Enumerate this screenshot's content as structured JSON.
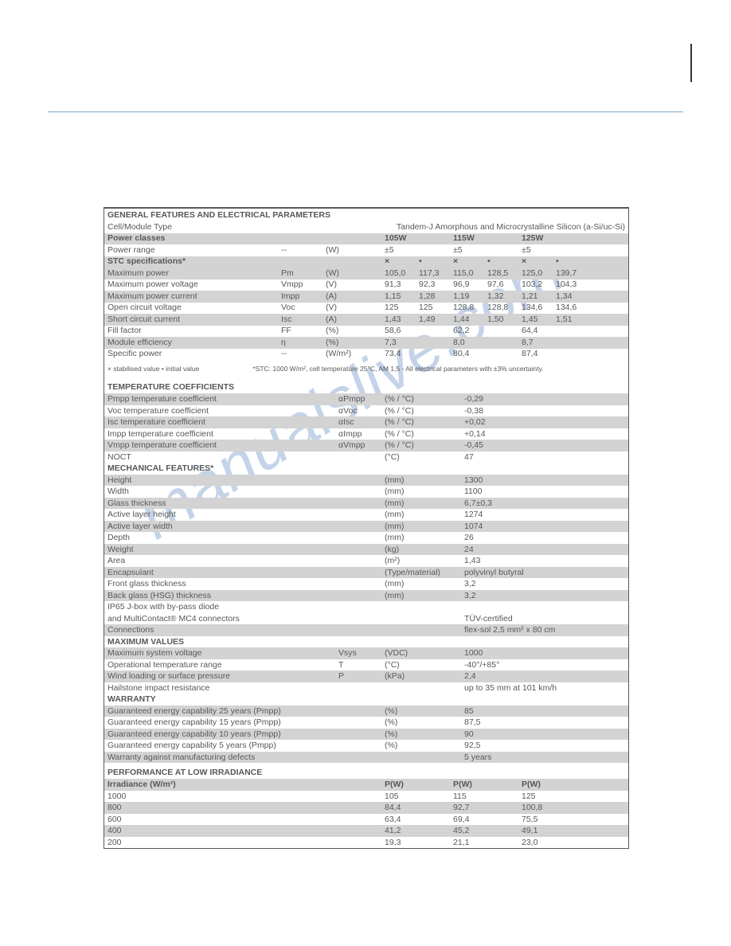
{
  "watermark": "manualslive.com",
  "sections": {
    "general": {
      "title": "GENERAL FEATURES AND ELECTRICAL PARAMETERS",
      "celltype_label": "Cell/Module Type",
      "celltype_value": "Tandem-J Amorphous and Microcrystalline Silicon (a-Si/uc-Si)",
      "powerclasses_label": "Power classes",
      "pc1": "105W",
      "pc2": "115W",
      "pc3": "125W",
      "powerrange_label": "Power range",
      "powerrange_sym": "--",
      "powerrange_unit": "(W)",
      "pr1": "±5",
      "pr2": "±5",
      "pr3": "±5",
      "stc_label": "STC specifications*",
      "sx": "×",
      "sd": "•",
      "rows": [
        {
          "shade": true,
          "label": "Maximum power",
          "sym": "Pm",
          "unit": "(W)",
          "a1": "105,0",
          "b1": "117,3",
          "a2": "115,0",
          "b2": "128,5",
          "a3": "125,0",
          "b3": "139,7"
        },
        {
          "shade": false,
          "label": "Maximum power voltage",
          "sym": "Vmpp",
          "unit": "(V)",
          "a1": "91,3",
          "b1": "92,3",
          "a2": "96,9",
          "b2": "97,6",
          "a3": "103,2",
          "b3": "104,3"
        },
        {
          "shade": true,
          "label": "Maximum power current",
          "sym": "Impp",
          "unit": "(A)",
          "a1": "1,15",
          "b1": "1,28",
          "a2": "1,19",
          "b2": "1,32",
          "a3": "1,21",
          "b3": "1,34"
        },
        {
          "shade": false,
          "label": "Open circuit voltage",
          "sym": "Voc",
          "unit": "(V)",
          "a1": "125",
          "b1": "125",
          "a2": "128,8",
          "b2": "128,8",
          "a3": "134,6",
          "b3": "134,6"
        },
        {
          "shade": true,
          "label": "Short circuit current",
          "sym": "Isc",
          "unit": "(A)",
          "a1": "1,43",
          "b1": "1,49",
          "a2": "1,44",
          "b2": "1,50",
          "a3": "1,45",
          "b3": "1,51"
        },
        {
          "shade": false,
          "label": "Fill factor",
          "sym": "FF",
          "unit": "(%)",
          "v1": "58,6",
          "v2": "62,2",
          "v3": "64,4"
        },
        {
          "shade": true,
          "label": "Module efficiency",
          "sym": "η",
          "unit": "(%)",
          "v1": "7,3",
          "v2": "8,0",
          "v3": "8,7"
        },
        {
          "shade": false,
          "label": "Specific power",
          "sym": "--",
          "unit": "(W/m²)",
          "v1": "73,4",
          "v2": "80,4",
          "v3": "87,4"
        }
      ],
      "footnote_left": "× stabilised value • initial value",
      "footnote_right": "*STC: 1000 W/m², cell temperature 25°C, AM 1,5 - All electrical parameters with ±3% uncertainty."
    },
    "temp": {
      "title": "TEMPERATURE COEFFICIENTS",
      "rows": [
        {
          "shade": true,
          "label": "Pmpp temperature coefficient",
          "sym": "αPmpp",
          "unit": "(% / °C)",
          "val": "-0,29"
        },
        {
          "shade": false,
          "label": "Voc temperature coefficient",
          "sym": "αVoc",
          "unit": "(% / °C)",
          "val": "-0,38"
        },
        {
          "shade": true,
          "label": "Isc temperature coefficient",
          "sym": "αIsc",
          "unit": "(% / °C)",
          "val": "+0,02"
        },
        {
          "shade": false,
          "label": "Impp temperature coefficient",
          "sym": "αImpp",
          "unit": "(% / °C)",
          "val": "+0,14"
        },
        {
          "shade": true,
          "label": "Vmpp temperature coefficient",
          "sym": "αVmpp",
          "unit": "(% / °C)",
          "val": "-0,45"
        },
        {
          "shade": false,
          "label": "NOCT",
          "sym": "",
          "unit": "(°C)",
          "val": "47"
        }
      ]
    },
    "mech": {
      "title": "MECHANICAL FEATURES*",
      "rows": [
        {
          "shade": true,
          "label": "Height",
          "unit": "(mm)",
          "val": "1300"
        },
        {
          "shade": false,
          "label": "Width",
          "unit": "(mm)",
          "val": "1100"
        },
        {
          "shade": true,
          "label": "Glass thickness",
          "unit": "(mm)",
          "val": "6,7±0,3"
        },
        {
          "shade": false,
          "label": "Active layer height",
          "unit": "(mm)",
          "val": "1274"
        },
        {
          "shade": true,
          "label": "Active layer width",
          "unit": "(mm)",
          "val": "1074"
        },
        {
          "shade": false,
          "label": "Depth",
          "unit": "(mm)",
          "val": "26"
        },
        {
          "shade": true,
          "label": "Weight",
          "unit": "(kg)",
          "val": "24"
        },
        {
          "shade": false,
          "label": "Area",
          "unit": "(m²)",
          "val": "1,43"
        },
        {
          "shade": true,
          "label": "Encapsulant",
          "unit": "(Type/material)",
          "val": "polyvinyl butyral"
        },
        {
          "shade": false,
          "label": "Front glass thickness",
          "unit": "(mm)",
          "val": "3,2"
        },
        {
          "shade": true,
          "label": "Back glass (HSG) thickness",
          "unit": "(mm)",
          "val": "3,2"
        }
      ],
      "jbox_l1": "IP65 J-box with by-pass diode",
      "jbox_l2": "and MultiContact® MC4 connectors",
      "jbox_val": "TÜV-certified",
      "conn_label": "Connections",
      "conn_val": "flex-sol 2,5 mm² x 80 cm"
    },
    "max": {
      "title": "MAXIMUM VALUES",
      "rows": [
        {
          "shade": true,
          "label": "Maximum system voltage",
          "sym": "Vsys",
          "unit": "(VDC)",
          "val": "1000"
        },
        {
          "shade": false,
          "label": "Operational temperature range",
          "sym": "T",
          "unit": "(°C)",
          "val": "-40°/+85°"
        },
        {
          "shade": true,
          "label": "Wind loading or surface pressure",
          "sym": "P",
          "unit": "(kPa)",
          "val": "2,4"
        },
        {
          "shade": false,
          "label": "Hailstone impact resistance",
          "sym": "",
          "unit": "",
          "val": "up to 35 mm at 101 km/h"
        }
      ]
    },
    "warranty": {
      "title": "WARRANTY",
      "rows": [
        {
          "shade": true,
          "label": "Guaranteed energy capability 25 years (Pmpp)",
          "unit": "(%)",
          "val": "85"
        },
        {
          "shade": false,
          "label": "Guaranteed energy capability 15 years (Pmpp)",
          "unit": "(%)",
          "val": "87,5"
        },
        {
          "shade": true,
          "label": "Guaranteed energy capability 10 years (Pmpp)",
          "unit": "(%)",
          "val": "90"
        },
        {
          "shade": false,
          "label": "Guaranteed energy capability 5 years (Pmpp)",
          "unit": "(%)",
          "val": "92,5"
        },
        {
          "shade": true,
          "label": "Warranty against manufacturing defects",
          "unit": "",
          "val": "5 years"
        }
      ]
    },
    "perf": {
      "title": "PERFORMANCE AT LOW IRRADIANCE",
      "head_label": "Irradiance (W/m²)",
      "pw": "P(W)",
      "rows": [
        {
          "shade": false,
          "label": "1000",
          "v1": "105",
          "v2": "115",
          "v3": "125"
        },
        {
          "shade": true,
          "label": "800",
          "v1": "84,4",
          "v2": "92,7",
          "v3": "100,8"
        },
        {
          "shade": false,
          "label": "600",
          "v1": "63,4",
          "v2": "69,4",
          "v3": "75,5"
        },
        {
          "shade": true,
          "label": "400",
          "v1": "41,2",
          "v2": "45,2",
          "v3": "49,1"
        },
        {
          "shade": false,
          "label": "200",
          "v1": "19,3",
          "v2": "21,1",
          "v3": "23,0"
        }
      ]
    }
  }
}
